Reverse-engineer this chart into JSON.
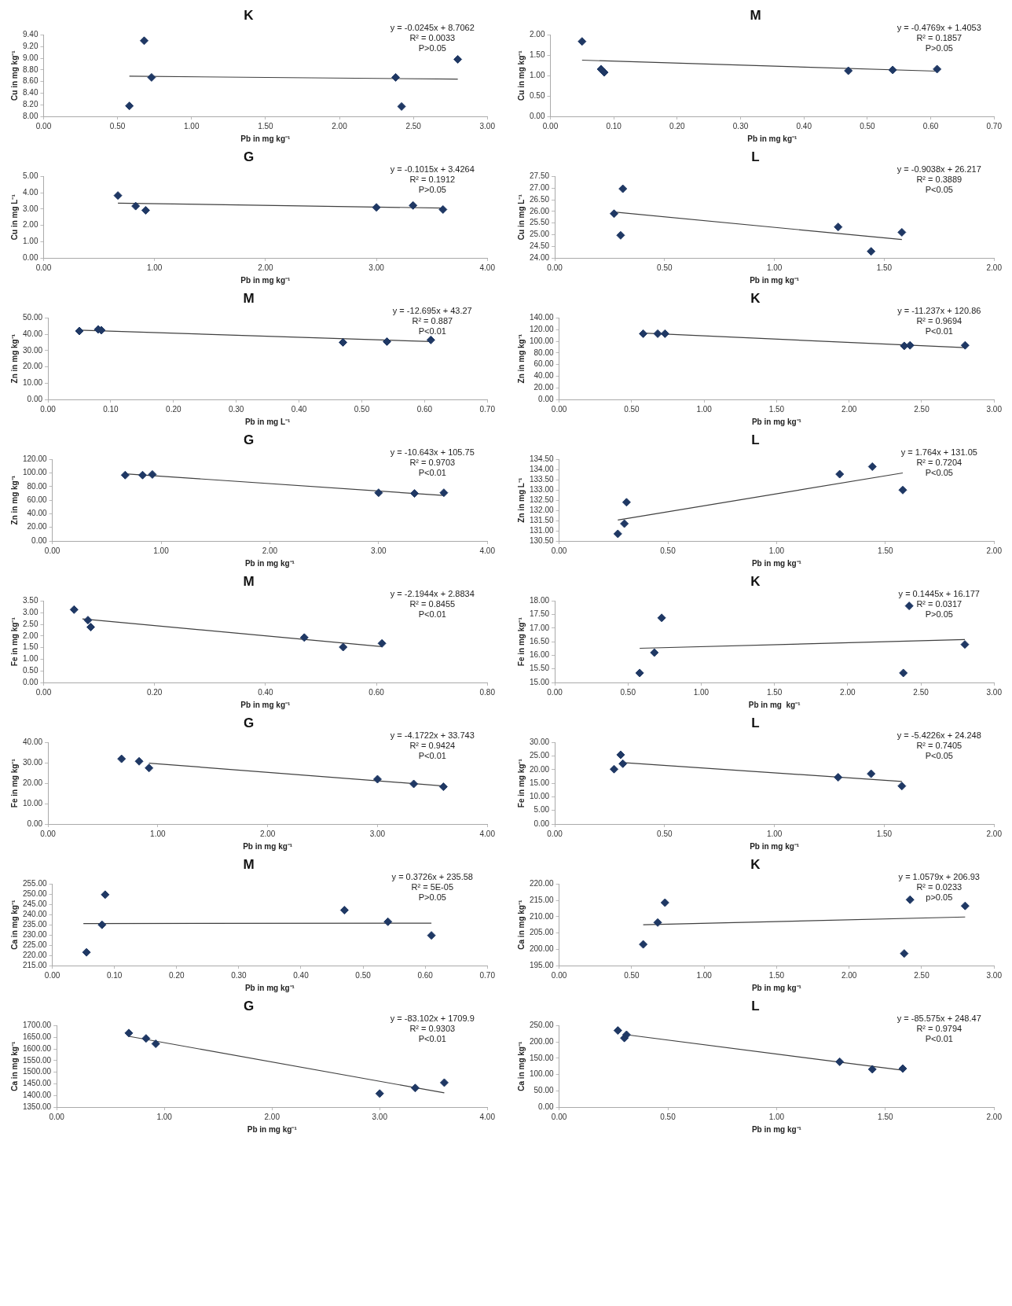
{
  "chart_data": [
    {
      "type": "scatter",
      "title": "K",
      "xlabel": "Pb in mg kg⁻¹",
      "ylabel": "Cu in mg kg⁻¹",
      "xlim": [
        0,
        3
      ],
      "xticks": [
        {
          "value": 0,
          "label": "0.00"
        },
        {
          "value": 0.5,
          "label": "0.50"
        },
        {
          "value": 1,
          "label": "1.00"
        },
        {
          "value": 1.5,
          "label": "1.50"
        },
        {
          "value": 2,
          "label": "2.00"
        },
        {
          "value": 2.5,
          "label": "2.50"
        },
        {
          "value": 3,
          "label": "3.00"
        }
      ],
      "ylim": [
        8,
        9.4
      ],
      "yticks": [
        {
          "value": 8,
          "label": "8.00"
        },
        {
          "value": 8.2,
          "label": "8.20"
        },
        {
          "value": 8.4,
          "label": "8.40"
        },
        {
          "value": 8.6,
          "label": "8.60"
        },
        {
          "value": 8.8,
          "label": "8.80"
        },
        {
          "value": 9,
          "label": "9.00"
        },
        {
          "value": 9.2,
          "label": "9.20"
        },
        {
          "value": 9.4,
          "label": "9.40"
        }
      ],
      "annotations": [
        "y = -0.0245x + 8.7062",
        "R² = 0.0033",
        "P>0.05"
      ],
      "series": [
        {
          "type": "scatter",
          "marker": "diamond",
          "color": "#1f3864",
          "x": [
            0.58,
            0.68,
            0.73,
            2.38,
            2.42,
            2.8
          ],
          "values": [
            8.18,
            9.3,
            8.67,
            8.67,
            8.17,
            8.98
          ]
        },
        {
          "type": "line",
          "marker": "none",
          "color": "#404040",
          "x": [
            0.58,
            2.8
          ],
          "values": [
            8.69,
            8.64
          ]
        }
      ]
    },
    {
      "type": "scatter",
      "title": "M",
      "xlabel": "Pb in mg kg⁻¹",
      "ylabel": "Cu in mg kg⁻¹",
      "xlim": [
        0,
        0.7
      ],
      "xticks": [
        {
          "value": 0,
          "label": "0.00"
        },
        {
          "value": 0.1,
          "label": "0.10"
        },
        {
          "value": 0.2,
          "label": "0.20"
        },
        {
          "value": 0.3,
          "label": "0.30"
        },
        {
          "value": 0.4,
          "label": "0.40"
        },
        {
          "value": 0.5,
          "label": "0.50"
        },
        {
          "value": 0.6,
          "label": "0.60"
        },
        {
          "value": 0.7,
          "label": "0.70"
        }
      ],
      "ylim": [
        0,
        2
      ],
      "yticks": [
        {
          "value": 0,
          "label": "0.00"
        },
        {
          "value": 0.5,
          "label": "0.50"
        },
        {
          "value": 1,
          "label": "1.00"
        },
        {
          "value": 1.5,
          "label": "1.50"
        },
        {
          "value": 2,
          "label": "2.00"
        }
      ],
      "annotations": [
        "y = -0.4769x + 1.4053",
        "R² = 0.1857",
        "P>0.05"
      ],
      "series": [
        {
          "type": "scatter",
          "marker": "diamond",
          "color": "#1f3864",
          "x": [
            0.05,
            0.08,
            0.085,
            0.47,
            0.54,
            0.61
          ],
          "values": [
            1.84,
            1.16,
            1.08,
            1.12,
            1.14,
            1.16
          ]
        },
        {
          "type": "line",
          "marker": "none",
          "color": "#404040",
          "x": [
            0.05,
            0.61
          ],
          "values": [
            1.38,
            1.11
          ]
        }
      ]
    },
    {
      "type": "scatter",
      "title": "G",
      "xlabel": "Pb in mg kg⁻¹",
      "ylabel": "Cu in mg L⁻¹",
      "xlim": [
        0,
        4
      ],
      "xticks": [
        {
          "value": 0,
          "label": "0.00"
        },
        {
          "value": 1,
          "label": "1.00"
        },
        {
          "value": 2,
          "label": "2.00"
        },
        {
          "value": 3,
          "label": "3.00"
        },
        {
          "value": 4,
          "label": "4.00"
        }
      ],
      "ylim": [
        0,
        5
      ],
      "yticks": [
        {
          "value": 0,
          "label": "0.00"
        },
        {
          "value": 1,
          "label": "1.00"
        },
        {
          "value": 2,
          "label": "2.00"
        },
        {
          "value": 3,
          "label": "3.00"
        },
        {
          "value": 4,
          "label": "4.00"
        },
        {
          "value": 5,
          "label": "5.00"
        }
      ],
      "annotations": [
        "y = -0.1015x + 3.4264",
        "R² = 0.1912",
        "P>0.05"
      ],
      "series": [
        {
          "type": "scatter",
          "marker": "diamond",
          "color": "#1f3864",
          "x": [
            0.67,
            0.83,
            0.92,
            3.0,
            3.33,
            3.6
          ],
          "values": [
            3.83,
            3.18,
            2.92,
            3.1,
            3.22,
            2.97
          ]
        },
        {
          "type": "line",
          "marker": "none",
          "color": "#404040",
          "x": [
            0.67,
            3.6
          ],
          "values": [
            3.36,
            3.06
          ]
        }
      ]
    },
    {
      "type": "scatter",
      "title": "L",
      "xlabel": "Pb in mg kg⁻¹",
      "ylabel": "Cu in mg L⁻¹",
      "xlim": [
        0,
        2
      ],
      "xticks": [
        {
          "value": 0,
          "label": "0.00"
        },
        {
          "value": 0.5,
          "label": "0.50"
        },
        {
          "value": 1,
          "label": "1.00"
        },
        {
          "value": 1.5,
          "label": "1.50"
        },
        {
          "value": 2,
          "label": "2.00"
        }
      ],
      "ylim": [
        24,
        27.5
      ],
      "yticks": [
        {
          "value": 24,
          "label": "24.00"
        },
        {
          "value": 24.5,
          "label": "24.50"
        },
        {
          "value": 25,
          "label": "25.00"
        },
        {
          "value": 25.5,
          "label": "25.50"
        },
        {
          "value": 26,
          "label": "26.00"
        },
        {
          "value": 26.5,
          "label": "26.50"
        },
        {
          "value": 27,
          "label": "27.00"
        },
        {
          "value": 27.5,
          "label": "27.50"
        }
      ],
      "annotations": [
        "y = -0.9038x + 26.217",
        "R² = 0.3889",
        "P<0.05"
      ],
      "series": [
        {
          "type": "scatter",
          "marker": "diamond",
          "color": "#1f3864",
          "x": [
            0.27,
            0.3,
            0.31,
            1.29,
            1.44,
            1.58
          ],
          "values": [
            25.9,
            24.97,
            26.97,
            25.33,
            24.28,
            25.1
          ]
        },
        {
          "type": "line",
          "marker": "none",
          "color": "#404040",
          "x": [
            0.27,
            1.58
          ],
          "values": [
            25.97,
            24.79
          ]
        }
      ]
    },
    {
      "type": "scatter",
      "title": "M",
      "xlabel": "Pb in mg L⁻¹",
      "ylabel": "Zn in mg kg⁻¹",
      "xlim": [
        0,
        0.7
      ],
      "xticks": [
        {
          "value": 0,
          "label": "0.00"
        },
        {
          "value": 0.1,
          "label": "0.10"
        },
        {
          "value": 0.2,
          "label": "0.20"
        },
        {
          "value": 0.3,
          "label": "0.30"
        },
        {
          "value": 0.4,
          "label": "0.40"
        },
        {
          "value": 0.5,
          "label": "0.50"
        },
        {
          "value": 0.6,
          "label": "0.60"
        },
        {
          "value": 0.7,
          "label": "0.70"
        }
      ],
      "ylim": [
        0,
        50
      ],
      "yticks": [
        {
          "value": 0,
          "label": "0.00"
        },
        {
          "value": 10,
          "label": "10.00"
        },
        {
          "value": 20,
          "label": "20.00"
        },
        {
          "value": 30,
          "label": "30.00"
        },
        {
          "value": 40,
          "label": "40.00"
        },
        {
          "value": 50,
          "label": "50.00"
        }
      ],
      "annotations": [
        "y = -12.695x + 43.27",
        "R² = 0.887",
        "P<0.01"
      ],
      "series": [
        {
          "type": "scatter",
          "marker": "diamond",
          "color": "#1f3864",
          "x": [
            0.05,
            0.08,
            0.085,
            0.47,
            0.54,
            0.61
          ],
          "values": [
            42,
            43,
            42.5,
            35,
            35.5,
            36.5
          ]
        },
        {
          "type": "line",
          "marker": "none",
          "color": "#404040",
          "x": [
            0.05,
            0.61
          ],
          "values": [
            42.5,
            35.5
          ]
        }
      ]
    },
    {
      "type": "scatter",
      "title": "K",
      "xlabel": "Pb in mg kg⁻¹",
      "ylabel": "Zn in mg kg⁻¹",
      "xlim": [
        0,
        3
      ],
      "xticks": [
        {
          "value": 0,
          "label": "0.00"
        },
        {
          "value": 0.5,
          "label": "0.50"
        },
        {
          "value": 1,
          "label": "1.00"
        },
        {
          "value": 1.5,
          "label": "1.50"
        },
        {
          "value": 2,
          "label": "2.00"
        },
        {
          "value": 2.5,
          "label": "2.50"
        },
        {
          "value": 3,
          "label": "3.00"
        }
      ],
      "ylim": [
        0,
        140
      ],
      "yticks": [
        {
          "value": 0,
          "label": "0.00"
        },
        {
          "value": 20,
          "label": "20.00"
        },
        {
          "value": 40,
          "label": "40.00"
        },
        {
          "value": 60,
          "label": "60.00"
        },
        {
          "value": 80,
          "label": "80.00"
        },
        {
          "value": 100,
          "label": "100.00"
        },
        {
          "value": 120,
          "label": "120.00"
        },
        {
          "value": 140,
          "label": "140.00"
        }
      ],
      "annotations": [
        "y = -11.237x + 120.86",
        "R² = 0.9694",
        "P<0.01"
      ],
      "series": [
        {
          "type": "scatter",
          "marker": "diamond",
          "color": "#1f3864",
          "x": [
            0.58,
            0.68,
            0.73,
            2.38,
            2.42,
            2.8
          ],
          "values": [
            113,
            113,
            113,
            92,
            93,
            93
          ]
        },
        {
          "type": "line",
          "marker": "none",
          "color": "#404040",
          "x": [
            0.58,
            2.8
          ],
          "values": [
            114,
            89
          ]
        }
      ]
    },
    {
      "type": "scatter",
      "title": "G",
      "xlabel": "Pb in mg kg⁻¹",
      "ylabel": "Zn in mg kg⁻¹",
      "xlim": [
        0,
        4
      ],
      "xticks": [
        {
          "value": 0,
          "label": "0.00"
        },
        {
          "value": 1,
          "label": "1.00"
        },
        {
          "value": 2,
          "label": "2.00"
        },
        {
          "value": 3,
          "label": "3.00"
        },
        {
          "value": 4,
          "label": "4.00"
        }
      ],
      "ylim": [
        0,
        120
      ],
      "yticks": [
        {
          "value": 0,
          "label": "0.00"
        },
        {
          "value": 20,
          "label": "20.00"
        },
        {
          "value": 40,
          "label": "40.00"
        },
        {
          "value": 60,
          "label": "60.00"
        },
        {
          "value": 80,
          "label": "80.00"
        },
        {
          "value": 100,
          "label": "100.00"
        },
        {
          "value": 120,
          "label": "120.00"
        }
      ],
      "annotations": [
        "y = -10.643x + 105.75",
        "R² = 0.9703",
        "P<0.01"
      ],
      "series": [
        {
          "type": "scatter",
          "marker": "diamond",
          "color": "#1f3864",
          "x": [
            0.67,
            0.83,
            0.92,
            3.0,
            3.33,
            3.6
          ],
          "values": [
            97,
            97,
            98,
            71,
            70,
            71
          ]
        },
        {
          "type": "line",
          "marker": "none",
          "color": "#404040",
          "x": [
            0.67,
            3.6
          ],
          "values": [
            99,
            67
          ]
        }
      ]
    },
    {
      "type": "scatter",
      "title": "L",
      "xlabel": "Pb in mg kg⁻¹",
      "ylabel": "Zn in mg L⁻¹",
      "xlim": [
        0,
        2
      ],
      "xticks": [
        {
          "value": 0,
          "label": "0.00"
        },
        {
          "value": 0.5,
          "label": "0.50"
        },
        {
          "value": 1,
          "label": "1.00"
        },
        {
          "value": 1.5,
          "label": "1.50"
        },
        {
          "value": 2,
          "label": "2.00"
        }
      ],
      "ylim": [
        130.5,
        134.5
      ],
      "yticks": [
        {
          "value": 130.5,
          "label": "130.50"
        },
        {
          "value": 131,
          "label": "131.00"
        },
        {
          "value": 131.5,
          "label": "131.50"
        },
        {
          "value": 132,
          "label": "132.00"
        },
        {
          "value": 132.5,
          "label": "132.50"
        },
        {
          "value": 133,
          "label": "133.00"
        },
        {
          "value": 133.5,
          "label": "133.50"
        },
        {
          "value": 134,
          "label": "134.00"
        },
        {
          "value": 134.5,
          "label": "134.50"
        }
      ],
      "annotations": [
        "y = 1.764x + 131.05",
        "R² = 0.7204",
        "P<0.05"
      ],
      "series": [
        {
          "type": "scatter",
          "marker": "diamond",
          "color": "#1f3864",
          "x": [
            0.27,
            0.3,
            0.31,
            1.29,
            1.44,
            1.58
          ],
          "values": [
            130.85,
            131.35,
            132.4,
            133.78,
            134.15,
            133.0
          ]
        },
        {
          "type": "line",
          "marker": "none",
          "color": "#404040",
          "x": [
            0.27,
            1.58
          ],
          "values": [
            131.53,
            133.84
          ]
        }
      ]
    },
    {
      "type": "scatter",
      "title": "M",
      "xlabel": "Pb in mg kg⁻¹",
      "ylabel": "Fe in mg kg⁻¹",
      "xlim": [
        0,
        0.8
      ],
      "xticks": [
        {
          "value": 0,
          "label": "0.00"
        },
        {
          "value": 0.2,
          "label": "0.20"
        },
        {
          "value": 0.4,
          "label": "0.40"
        },
        {
          "value": 0.6,
          "label": "0.60"
        },
        {
          "value": 0.8,
          "label": "0.80"
        }
      ],
      "ylim": [
        0,
        3.5
      ],
      "yticks": [
        {
          "value": 0,
          "label": "0.00"
        },
        {
          "value": 0.5,
          "label": "0.50"
        },
        {
          "value": 1,
          "label": "1.00"
        },
        {
          "value": 1.5,
          "label": "1.50"
        },
        {
          "value": 2,
          "label": "2.00"
        },
        {
          "value": 2.5,
          "label": "2.50"
        },
        {
          "value": 3,
          "label": "3.00"
        },
        {
          "value": 3.5,
          "label": "3.50"
        }
      ],
      "annotations": [
        "y = -2.1944x + 2.8834",
        "R² = 0.8455",
        "P<0.01"
      ],
      "series": [
        {
          "type": "scatter",
          "marker": "diamond",
          "color": "#1f3864",
          "x": [
            0.055,
            0.08,
            0.085,
            0.47,
            0.54,
            0.61
          ],
          "values": [
            3.13,
            2.68,
            2.38,
            1.93,
            1.52,
            1.68
          ]
        },
        {
          "type": "line",
          "marker": "none",
          "color": "#404040",
          "x": [
            0.07,
            0.61
          ],
          "values": [
            2.73,
            1.54
          ]
        }
      ]
    },
    {
      "type": "scatter",
      "title": "K",
      "xlabel": "Pb in mg  kg⁻¹",
      "ylabel": "Fe in mg kg⁻¹",
      "xlim": [
        0,
        3
      ],
      "xticks": [
        {
          "value": 0,
          "label": "0.00"
        },
        {
          "value": 0.5,
          "label": "0.50"
        },
        {
          "value": 1,
          "label": "1.00"
        },
        {
          "value": 1.5,
          "label": "1.50"
        },
        {
          "value": 2,
          "label": "2.00"
        },
        {
          "value": 2.5,
          "label": "2.50"
        },
        {
          "value": 3,
          "label": "3.00"
        }
      ],
      "ylim": [
        15,
        18
      ],
      "yticks": [
        {
          "value": 15,
          "label": "15.00"
        },
        {
          "value": 15.5,
          "label": "15.50"
        },
        {
          "value": 16,
          "label": "16.00"
        },
        {
          "value": 16.5,
          "label": "16.50"
        },
        {
          "value": 17,
          "label": "17.00"
        },
        {
          "value": 17.5,
          "label": "17.50"
        },
        {
          "value": 18,
          "label": "18.00"
        }
      ],
      "annotations": [
        "y = 0.1445x + 16.177",
        "R² = 0.0317",
        "P>0.05"
      ],
      "series": [
        {
          "type": "scatter",
          "marker": "diamond",
          "color": "#1f3864",
          "x": [
            0.58,
            0.68,
            0.73,
            2.38,
            2.42,
            2.8
          ],
          "values": [
            15.35,
            16.1,
            17.38,
            15.35,
            17.82,
            16.4
          ]
        },
        {
          "type": "line",
          "marker": "none",
          "color": "#404040",
          "x": [
            0.58,
            2.8
          ],
          "values": [
            16.26,
            16.58
          ]
        }
      ]
    },
    {
      "type": "scatter",
      "title": "G",
      "xlabel": "Pb in mg kg⁻¹",
      "ylabel": "Fe in mg kg⁻¹",
      "xlim": [
        0,
        4
      ],
      "xticks": [
        {
          "value": 0,
          "label": "0.00"
        },
        {
          "value": 1,
          "label": "1.00"
        },
        {
          "value": 2,
          "label": "2.00"
        },
        {
          "value": 3,
          "label": "3.00"
        },
        {
          "value": 4,
          "label": "4.00"
        }
      ],
      "ylim": [
        0,
        40
      ],
      "yticks": [
        {
          "value": 0,
          "label": "0.00"
        },
        {
          "value": 10,
          "label": "10.00"
        },
        {
          "value": 20,
          "label": "20.00"
        },
        {
          "value": 30,
          "label": "30.00"
        },
        {
          "value": 40,
          "label": "40.00"
        }
      ],
      "annotations": [
        "y = -4.1722x + 33.743",
        "R² = 0.9424",
        "P<0.01"
      ],
      "series": [
        {
          "type": "scatter",
          "marker": "diamond",
          "color": "#1f3864",
          "x": [
            0.67,
            0.83,
            0.92,
            3.0,
            3.33,
            3.6
          ],
          "values": [
            32,
            30.8,
            27.5,
            22,
            19.7,
            18.3
          ]
        },
        {
          "type": "line",
          "marker": "none",
          "color": "#404040",
          "x": [
            0.92,
            3.6
          ],
          "values": [
            29.9,
            18.7
          ]
        }
      ]
    },
    {
      "type": "scatter",
      "title": "L",
      "xlabel": "Pb in mg kg⁻¹",
      "ylabel": "Fe in mg kg⁻¹",
      "xlim": [
        0,
        2
      ],
      "xticks": [
        {
          "value": 0,
          "label": "0.00"
        },
        {
          "value": 0.5,
          "label": "0.50"
        },
        {
          "value": 1,
          "label": "1.00"
        },
        {
          "value": 1.5,
          "label": "1.50"
        },
        {
          "value": 2,
          "label": "2.00"
        }
      ],
      "ylim": [
        0,
        30
      ],
      "yticks": [
        {
          "value": 0,
          "label": "0.00"
        },
        {
          "value": 5,
          "label": "5.00"
        },
        {
          "value": 10,
          "label": "10.00"
        },
        {
          "value": 15,
          "label": "15.00"
        },
        {
          "value": 20,
          "label": "20.00"
        },
        {
          "value": 25,
          "label": "25.00"
        },
        {
          "value": 30,
          "label": "30.00"
        }
      ],
      "annotations": [
        "y = -5.4226x + 24.248",
        "R² = 0.7405",
        "P<0.05"
      ],
      "series": [
        {
          "type": "scatter",
          "marker": "diamond",
          "color": "#1f3864",
          "x": [
            0.27,
            0.3,
            0.31,
            1.29,
            1.44,
            1.58
          ],
          "values": [
            20.2,
            25.5,
            22.2,
            17.2,
            18.5,
            14
          ]
        },
        {
          "type": "line",
          "marker": "none",
          "color": "#404040",
          "x": [
            0.31,
            1.58
          ],
          "values": [
            22.6,
            15.7
          ]
        }
      ]
    },
    {
      "type": "scatter",
      "title": "M",
      "xlabel": "Pb in mg kg⁻¹",
      "ylabel": "Ca in mg kg⁻¹",
      "xlim": [
        0,
        0.7
      ],
      "xticks": [
        {
          "value": 0,
          "label": "0.00"
        },
        {
          "value": 0.1,
          "label": "0.10"
        },
        {
          "value": 0.2,
          "label": "0.20"
        },
        {
          "value": 0.3,
          "label": "0.30"
        },
        {
          "value": 0.4,
          "label": "0.40"
        },
        {
          "value": 0.5,
          "label": "0.50"
        },
        {
          "value": 0.6,
          "label": "0.60"
        },
        {
          "value": 0.7,
          "label": "0.70"
        }
      ],
      "ylim": [
        215,
        255
      ],
      "yticks": [
        {
          "value": 215,
          "label": "215.00"
        },
        {
          "value": 220,
          "label": "220.00"
        },
        {
          "value": 225,
          "label": "225.00"
        },
        {
          "value": 230,
          "label": "230.00"
        },
        {
          "value": 235,
          "label": "235.00"
        },
        {
          "value": 240,
          "label": "240.00"
        },
        {
          "value": 245,
          "label": "245.00"
        },
        {
          "value": 250,
          "label": "250.00"
        },
        {
          "value": 255,
          "label": "255.00"
        }
      ],
      "annotations": [
        "y = 0.3726x + 235.58",
        "R² = 5E-05",
        "P>0.05"
      ],
      "series": [
        {
          "type": "scatter",
          "marker": "diamond",
          "color": "#1f3864",
          "x": [
            0.055,
            0.08,
            0.085,
            0.47,
            0.54,
            0.61
          ],
          "values": [
            221.5,
            235,
            249.8,
            242.2,
            236.5,
            229.8
          ]
        },
        {
          "type": "line",
          "marker": "none",
          "color": "#404040",
          "x": [
            0.05,
            0.61
          ],
          "values": [
            235.6,
            235.8
          ]
        }
      ]
    },
    {
      "type": "scatter",
      "title": "K",
      "xlabel": "Pb in mg kg⁻¹",
      "ylabel": "Ca in mg kg⁻¹",
      "xlim": [
        0,
        3
      ],
      "xticks": [
        {
          "value": 0,
          "label": "0.00"
        },
        {
          "value": 0.5,
          "label": "0.50"
        },
        {
          "value": 1,
          "label": "1.00"
        },
        {
          "value": 1.5,
          "label": "1.50"
        },
        {
          "value": 2,
          "label": "2.00"
        },
        {
          "value": 2.5,
          "label": "2.50"
        },
        {
          "value": 3,
          "label": "3.00"
        }
      ],
      "ylim": [
        195,
        220
      ],
      "yticks": [
        {
          "value": 195,
          "label": "195.00"
        },
        {
          "value": 200,
          "label": "200.00"
        },
        {
          "value": 205,
          "label": "205.00"
        },
        {
          "value": 210,
          "label": "210.00"
        },
        {
          "value": 215,
          "label": "215.00"
        },
        {
          "value": 220,
          "label": "220.00"
        }
      ],
      "annotations": [
        "y = 1.0579x + 206.93",
        "R² = 0.0233",
        "p>0.05"
      ],
      "series": [
        {
          "type": "scatter",
          "marker": "diamond",
          "color": "#1f3864",
          "x": [
            0.58,
            0.68,
            0.73,
            2.38,
            2.42,
            2.8
          ],
          "values": [
            201.5,
            208.2,
            214.3,
            198.7,
            215.2,
            213.3
          ]
        },
        {
          "type": "line",
          "marker": "none",
          "color": "#404040",
          "x": [
            0.58,
            2.8
          ],
          "values": [
            207.5,
            209.9
          ]
        }
      ]
    },
    {
      "type": "scatter",
      "title": "G",
      "xlabel": "Pb in mg kg⁻¹",
      "ylabel": "Ca in mg kg⁻¹",
      "xlim": [
        0,
        4
      ],
      "xticks": [
        {
          "value": 0,
          "label": "0.00"
        },
        {
          "value": 1,
          "label": "1.00"
        },
        {
          "value": 2,
          "label": "2.00"
        },
        {
          "value": 3,
          "label": "3.00"
        },
        {
          "value": 4,
          "label": "4.00"
        }
      ],
      "ylim": [
        1350,
        1700
      ],
      "yticks": [
        {
          "value": 1350,
          "label": "1350.00"
        },
        {
          "value": 1400,
          "label": "1400.00"
        },
        {
          "value": 1450,
          "label": "1450.00"
        },
        {
          "value": 1500,
          "label": "1500.00"
        },
        {
          "value": 1550,
          "label": "1550.00"
        },
        {
          "value": 1600,
          "label": "1600.00"
        },
        {
          "value": 1650,
          "label": "1650.00"
        },
        {
          "value": 1700,
          "label": "1700.00"
        }
      ],
      "annotations": [
        "y = -83.102x + 1709.9",
        "R² = 0.9303",
        "P<0.01"
      ],
      "series": [
        {
          "type": "scatter",
          "marker": "diamond",
          "color": "#1f3864",
          "x": [
            0.67,
            0.83,
            0.92,
            3.0,
            3.33,
            3.6
          ],
          "values": [
            1668,
            1645,
            1622,
            1408,
            1432,
            1455
          ]
        },
        {
          "type": "line",
          "marker": "none",
          "color": "#404040",
          "x": [
            0.67,
            3.6
          ],
          "values": [
            1654,
            1411
          ]
        }
      ]
    },
    {
      "type": "scatter",
      "title": "L",
      "xlabel": "Pb in mg kg⁻¹",
      "ylabel": "Ca in mg kg⁻¹",
      "xlim": [
        0,
        2
      ],
      "xticks": [
        {
          "value": 0,
          "label": "0.00"
        },
        {
          "value": 0.5,
          "label": "0.50"
        },
        {
          "value": 1,
          "label": "1.00"
        },
        {
          "value": 1.5,
          "label": "1.50"
        },
        {
          "value": 2,
          "label": "2.00"
        }
      ],
      "ylim": [
        0,
        250
      ],
      "yticks": [
        {
          "value": 0,
          "label": "0.00"
        },
        {
          "value": 50,
          "label": "50.00"
        },
        {
          "value": 100,
          "label": "100.00"
        },
        {
          "value": 150,
          "label": "150.00"
        },
        {
          "value": 200,
          "label": "200.00"
        },
        {
          "value": 250,
          "label": "250.00"
        }
      ],
      "annotations": [
        "y = -85.575x + 248.47",
        "R² = 0.9794",
        "P<0.01"
      ],
      "series": [
        {
          "type": "scatter",
          "marker": "diamond",
          "color": "#1f3864",
          "x": [
            0.27,
            0.3,
            0.31,
            1.29,
            1.44,
            1.58
          ],
          "values": [
            235,
            212,
            222,
            139,
            116,
            118
          ]
        },
        {
          "type": "line",
          "marker": "none",
          "color": "#404040",
          "x": [
            0.31,
            1.58
          ],
          "values": [
            222,
            113
          ]
        }
      ]
    }
  ]
}
